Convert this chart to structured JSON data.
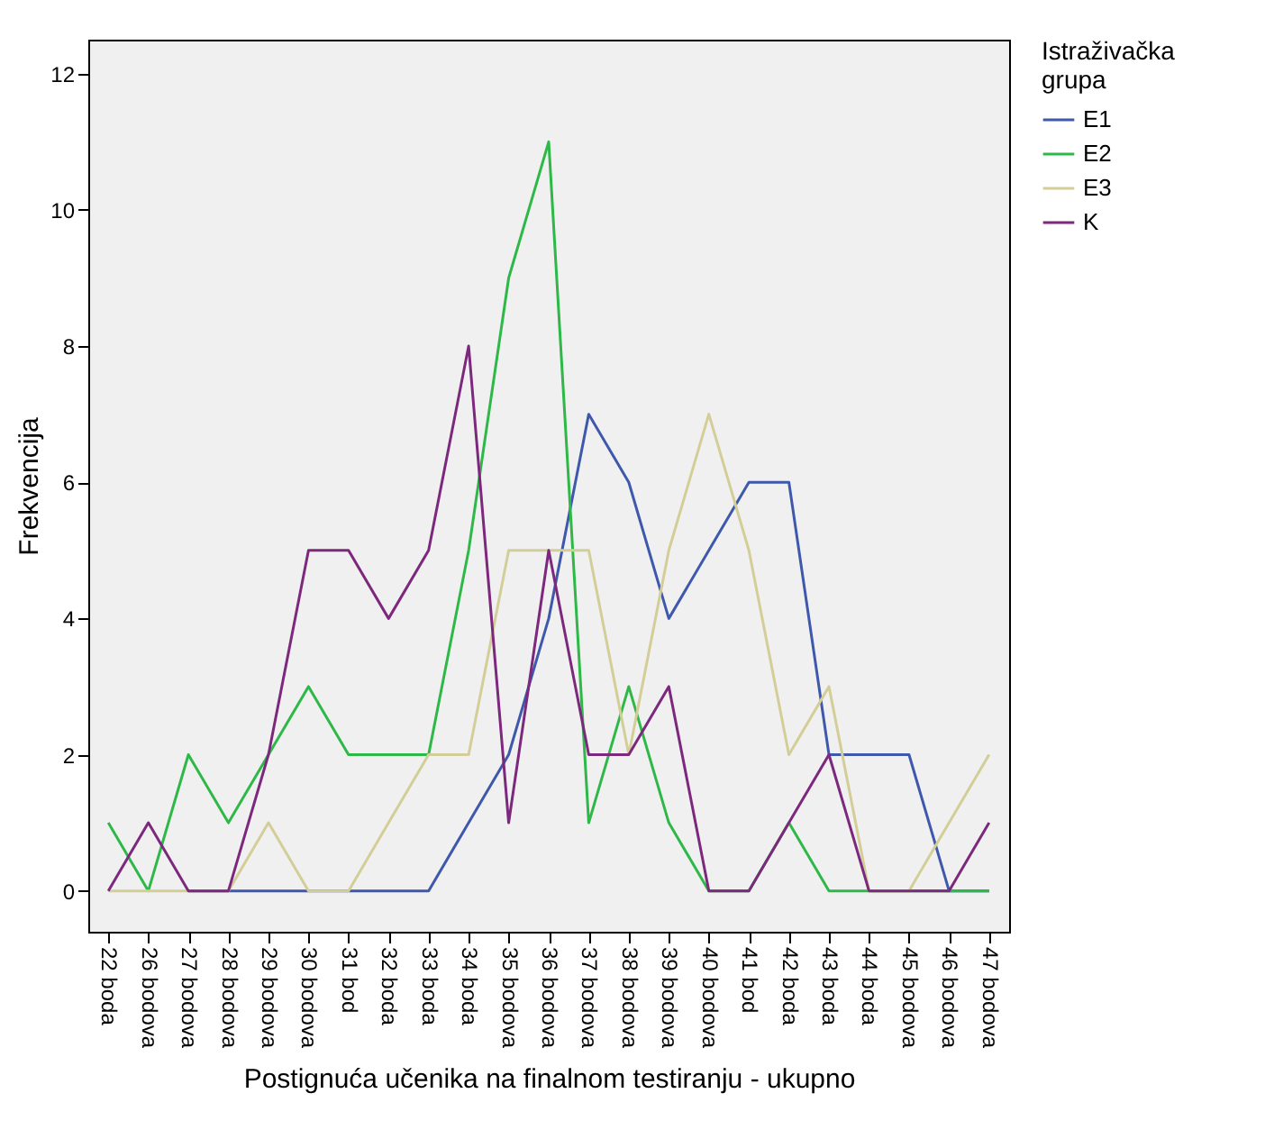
{
  "chart_data": {
    "type": "line",
    "xlabel": "Postignuća učenika na finalnom testiranju - ukupno",
    "ylabel": "Frekvencija",
    "legend_title": "Istraživačka grupa",
    "legend": "top right",
    "grid": false,
    "marker": "none",
    "line_style": "solid",
    "categories": [
      "22 boda",
      "26 bodova",
      "27 bodova",
      "28 bodova",
      "29 bodova",
      "30 bodova",
      "31 bod",
      "32 boda",
      "33 boda",
      "34 boda",
      "35 bodova",
      "36 bodova",
      "37 bodova",
      "38 bodova",
      "39 bodova",
      "40 bodova",
      "41 bod",
      "42 boda",
      "43 boda",
      "44 boda",
      "45 bodova",
      "46 bodova",
      "47 bodova"
    ],
    "ylim": [
      -0.6,
      12.5
    ],
    "yticks": [
      0,
      2,
      4,
      6,
      8,
      10,
      12
    ],
    "series": [
      {
        "name": "E1",
        "color": "#3e58ac",
        "values": [
          null,
          null,
          0,
          0,
          0,
          0,
          0,
          0,
          0,
          1,
          2,
          4,
          7,
          6,
          4,
          5,
          6,
          6,
          2,
          2,
          2,
          0,
          0
        ]
      },
      {
        "name": "E2",
        "color": "#2eb848",
        "values": [
          1,
          0,
          2,
          1,
          2,
          3,
          2,
          2,
          2,
          5,
          9,
          11,
          1,
          3,
          1,
          0,
          0,
          1,
          0,
          0,
          0,
          0,
          0
        ]
      },
      {
        "name": "E3",
        "color": "#d3ce97",
        "values": [
          0,
          0,
          0,
          0,
          1,
          0,
          0,
          1,
          2,
          2,
          5,
          5,
          5,
          2,
          5,
          7,
          5,
          2,
          3,
          0,
          0,
          1,
          2
        ]
      },
      {
        "name": "K",
        "color": "#7c287d",
        "values": [
          0,
          1,
          0,
          0,
          2,
          5,
          5,
          4,
          5,
          8,
          1,
          5,
          2,
          2,
          3,
          0,
          0,
          1,
          2,
          0,
          0,
          0,
          1
        ]
      }
    ]
  }
}
